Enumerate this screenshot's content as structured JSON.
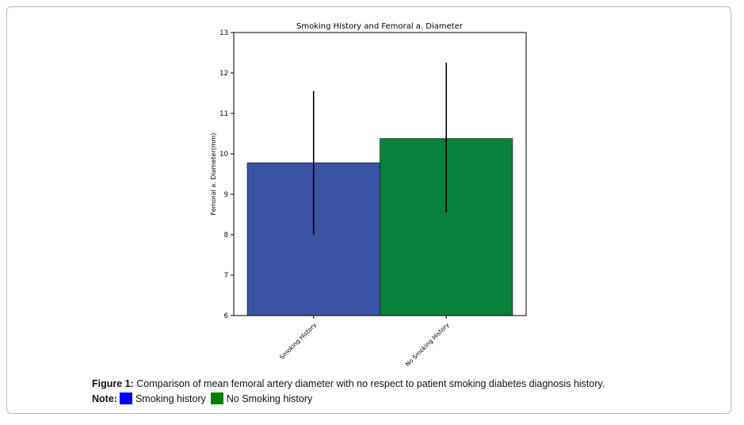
{
  "figure": {
    "caption_label": "Figure 1:",
    "caption_text": "Comparison of mean femoral artery diameter with no respect to patient smoking diabetes diagnosis history.",
    "note_label": "Note:",
    "legend": [
      {
        "label": "Smoking history",
        "color": "#0000ff"
      },
      {
        "label": "No Smoking history",
        "color": "#008000"
      }
    ]
  },
  "chart_data": {
    "type": "bar",
    "title": "Smoking History and Femoral a. Diameter",
    "xlabel": "",
    "ylabel": "Femoral a. Diameter(mm)",
    "categories": [
      "Smoking History",
      "No Smoking History"
    ],
    "values": [
      9.78,
      10.38
    ],
    "error_low": [
      8.0,
      8.55
    ],
    "error_high": [
      11.55,
      12.25
    ],
    "colors": [
      "#3a53a4",
      "#0a803e"
    ],
    "ylim": [
      6,
      13
    ],
    "yticks": [
      6,
      7,
      8,
      9,
      10,
      11,
      12,
      13
    ],
    "grid": false
  }
}
